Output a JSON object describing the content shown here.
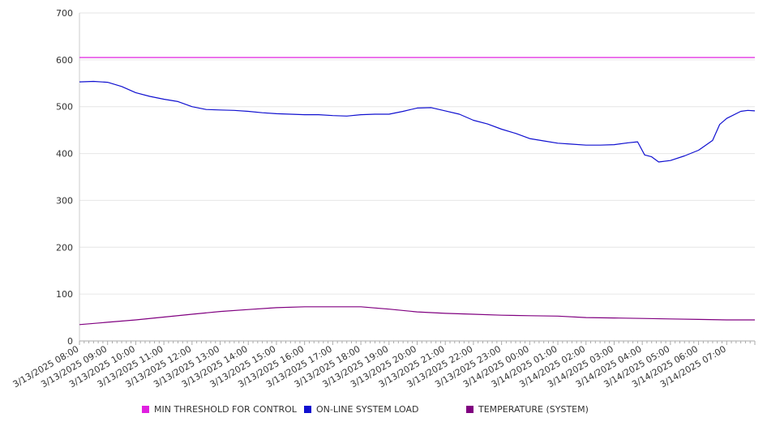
{
  "chart_data": {
    "type": "line",
    "ylim": [
      0,
      700
    ],
    "yticks": [
      "0",
      "100",
      "200",
      "300",
      "400",
      "500",
      "600",
      "700"
    ],
    "x_labels": [
      "3/13/2025 08:00",
      "3/13/2025 09:00",
      "3/13/2025 10:00",
      "3/13/2025 11:00",
      "3/13/2025 12:00",
      "3/13/2025 13:00",
      "3/13/2025 14:00",
      "3/13/2025 15:00",
      "3/13/2025 16:00",
      "3/13/2025 17:00",
      "3/13/2025 18:00",
      "3/13/2025 19:00",
      "3/13/2025 20:00",
      "3/13/2025 21:00",
      "3/13/2025 22:00",
      "3/13/2025 23:00",
      "3/14/2025 00:00",
      "3/14/2025 01:00",
      "3/14/2025 02:00",
      "3/14/2025 03:00",
      "3/14/2025 04:00",
      "3/14/2025 05:00",
      "3/14/2025 06:00",
      "3/14/2025 07:00"
    ],
    "grid": true,
    "legend_position": "bottom",
    "series": [
      {
        "name": "MIN THRESHOLD FOR CONTROL",
        "color": "#e020e0",
        "points": [
          [
            "3/13/2025 08:00",
            605
          ],
          [
            "3/14/2025 08:00",
            605
          ]
        ]
      },
      {
        "name": "ON-LINE SYSTEM LOAD",
        "color": "#1010d0",
        "points": [
          [
            "3/13/2025 08:00",
            553
          ],
          [
            "3/13/2025 08:30",
            554
          ],
          [
            "3/13/2025 09:00",
            552
          ],
          [
            "3/13/2025 09:30",
            543
          ],
          [
            "3/13/2025 10:00",
            530
          ],
          [
            "3/13/2025 10:30",
            522
          ],
          [
            "3/13/2025 11:00",
            516
          ],
          [
            "3/13/2025 11:30",
            511
          ],
          [
            "3/13/2025 12:00",
            500
          ],
          [
            "3/13/2025 12:30",
            494
          ],
          [
            "3/13/2025 13:00",
            493
          ],
          [
            "3/13/2025 13:30",
            492
          ],
          [
            "3/13/2025 14:00",
            490
          ],
          [
            "3/13/2025 14:30",
            487
          ],
          [
            "3/13/2025 15:00",
            485
          ],
          [
            "3/13/2025 15:30",
            484
          ],
          [
            "3/13/2025 16:00",
            483
          ],
          [
            "3/13/2025 16:30",
            483
          ],
          [
            "3/13/2025 17:00",
            481
          ],
          [
            "3/13/2025 17:30",
            480
          ],
          [
            "3/13/2025 18:00",
            483
          ],
          [
            "3/13/2025 18:30",
            484
          ],
          [
            "3/13/2025 19:00",
            484
          ],
          [
            "3/13/2025 19:30",
            490
          ],
          [
            "3/13/2025 20:00",
            497
          ],
          [
            "3/13/2025 20:30",
            498
          ],
          [
            "3/13/2025 21:00",
            491
          ],
          [
            "3/13/2025 21:30",
            484
          ],
          [
            "3/13/2025 22:00",
            471
          ],
          [
            "3/13/2025 22:30",
            463
          ],
          [
            "3/13/2025 23:00",
            452
          ],
          [
            "3/13/2025 23:30",
            443
          ],
          [
            "3/14/2025 00:00",
            432
          ],
          [
            "3/14/2025 00:30",
            427
          ],
          [
            "3/14/2025 01:00",
            422
          ],
          [
            "3/14/2025 01:30",
            420
          ],
          [
            "3/14/2025 02:00",
            418
          ],
          [
            "3/14/2025 02:30",
            418
          ],
          [
            "3/14/2025 03:00",
            419
          ],
          [
            "3/14/2025 03:30",
            423
          ],
          [
            "3/14/2025 03:50",
            425
          ],
          [
            "3/14/2025 04:05",
            397
          ],
          [
            "3/14/2025 04:20",
            393
          ],
          [
            "3/14/2025 04:35",
            382
          ],
          [
            "3/14/2025 05:00",
            385
          ],
          [
            "3/14/2025 05:30",
            395
          ],
          [
            "3/14/2025 06:00",
            407
          ],
          [
            "3/14/2025 06:30",
            428
          ],
          [
            "3/14/2025 06:45",
            462
          ],
          [
            "3/14/2025 07:00",
            475
          ],
          [
            "3/14/2025 07:30",
            490
          ],
          [
            "3/14/2025 07:45",
            492
          ],
          [
            "3/14/2025 08:00",
            491
          ]
        ]
      },
      {
        "name": "TEMPERATURE (SYSTEM)",
        "color": "#800080",
        "points": [
          [
            "3/13/2025 08:00",
            35
          ],
          [
            "3/13/2025 09:00",
            40
          ],
          [
            "3/13/2025 10:00",
            45
          ],
          [
            "3/13/2025 11:00",
            51
          ],
          [
            "3/13/2025 12:00",
            57
          ],
          [
            "3/13/2025 13:00",
            63
          ],
          [
            "3/13/2025 14:00",
            67
          ],
          [
            "3/13/2025 15:00",
            71
          ],
          [
            "3/13/2025 16:00",
            73
          ],
          [
            "3/13/2025 17:00",
            73
          ],
          [
            "3/13/2025 18:00",
            73
          ],
          [
            "3/13/2025 19:00",
            68
          ],
          [
            "3/13/2025 20:00",
            62
          ],
          [
            "3/13/2025 21:00",
            59
          ],
          [
            "3/13/2025 22:00",
            57
          ],
          [
            "3/13/2025 23:00",
            55
          ],
          [
            "3/14/2025 00:00",
            54
          ],
          [
            "3/14/2025 01:00",
            53
          ],
          [
            "3/14/2025 02:00",
            50
          ],
          [
            "3/14/2025 03:00",
            49
          ],
          [
            "3/14/2025 04:00",
            48
          ],
          [
            "3/14/2025 05:00",
            47
          ],
          [
            "3/14/2025 06:00",
            46
          ],
          [
            "3/14/2025 07:00",
            45
          ],
          [
            "3/14/2025 08:00",
            45
          ]
        ]
      }
    ]
  }
}
